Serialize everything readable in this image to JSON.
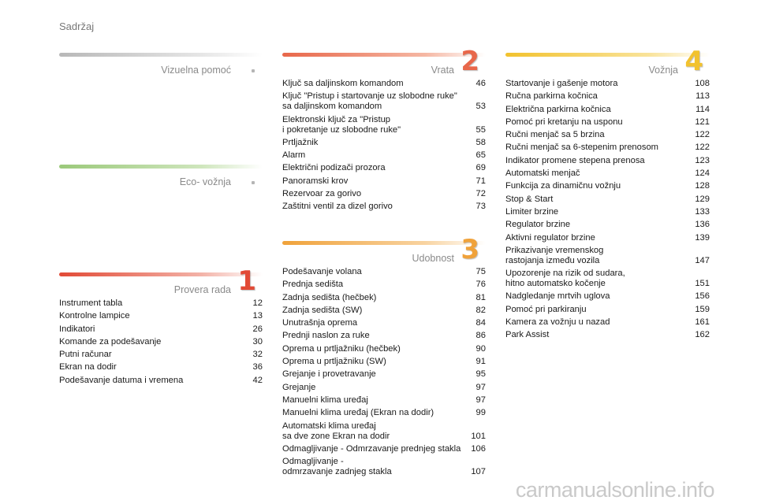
{
  "page": {
    "title": "Sadržaj"
  },
  "sections": {
    "vizuelna": {
      "title": "Vizuelna pomoć",
      "bar_color": "#b8b8b8",
      "items": []
    },
    "eco": {
      "title": "Eco- vožnja",
      "bar_color": "#9bc97a",
      "items": []
    },
    "provera": {
      "title": "Provera rada",
      "number": "1",
      "accent": "#e24a36",
      "items": [
        {
          "label": "Instrument tabla",
          "page": "12"
        },
        {
          "label": "Kontrolne lampice",
          "page": "13"
        },
        {
          "label": "Indikatori",
          "page": "26"
        },
        {
          "label": "Komande za podešavanje",
          "page": "30"
        },
        {
          "label": "Putni računar",
          "page": "32"
        },
        {
          "label": "Ekran na dodir",
          "page": "36"
        },
        {
          "label": "Podešavanje datuma i vremena",
          "page": "42"
        }
      ]
    },
    "vrata": {
      "title": "Vrata",
      "number": "2",
      "accent": "#e8674a",
      "items": [
        {
          "label": "Ključ sa daljinskom komandom",
          "page": "46"
        },
        {
          "label": "Ključ \"Pristup i startovanje uz slobodne ruke\"\n    sa daljinskom komandom",
          "page": "53"
        },
        {
          "label": "Elektronski ključ za \"Pristup\n    i pokretanje uz slobodne ruke\"",
          "page": "55"
        },
        {
          "label": "Prtljažnik",
          "page": "58"
        },
        {
          "label": "Alarm",
          "page": "65"
        },
        {
          "label": "Električni podizači prozora",
          "page": "69"
        },
        {
          "label": "Panoramski krov",
          "page": "71"
        },
        {
          "label": "Rezervoar za gorivo",
          "page": "72"
        },
        {
          "label": "Zaštitni ventil za dizel gorivo",
          "page": "73"
        }
      ]
    },
    "udobnost": {
      "title": "Udobnost",
      "number": "3",
      "accent": "#f0a23a",
      "items": [
        {
          "label": "Podešavanje volana",
          "page": "75"
        },
        {
          "label": "Prednja sedišta",
          "page": "76"
        },
        {
          "label": "Zadnja sedišta (hečbek)",
          "page": "81"
        },
        {
          "label": "Zadnja sedišta (SW)",
          "page": "82"
        },
        {
          "label": "Unutrašnja oprema",
          "page": "84"
        },
        {
          "label": "Prednji naslon za ruke",
          "page": "86"
        },
        {
          "label": "Oprema u prtljažniku (hečbek)",
          "page": "90"
        },
        {
          "label": "Oprema u prtljažniku (SW)",
          "page": "91"
        },
        {
          "label": "Grejanje i provetravanje",
          "page": "95"
        },
        {
          "label": "Grejanje",
          "page": "97"
        },
        {
          "label": "Manuelni klima uređaj",
          "page": "97"
        },
        {
          "label": "Manuelni klima uređaj (Ekran na dodir)",
          "page": "99"
        },
        {
          "label": "Automatski klima uređaj\n    sa dve zone Ekran na dodir",
          "page": "101"
        },
        {
          "label": "Odmagljivanje - Odmrzavanje prednjeg stakla",
          "page": "106"
        },
        {
          "label": "Odmagljivanje -\n    odmrzavanje zadnjeg stakla",
          "page": "107"
        }
      ]
    },
    "voznja": {
      "title": "Vožnja",
      "number": "4",
      "accent": "#f2c22e",
      "items": [
        {
          "label": "Startovanje i gašenje motora",
          "page": "108"
        },
        {
          "label": "Ručna parkirna kočnica",
          "page": "113"
        },
        {
          "label": "Električna parkirna kočnica",
          "page": "114"
        },
        {
          "label": "Pomoć pri kretanju na usponu",
          "page": "121"
        },
        {
          "label": "Ručni menjač sa 5 brzina",
          "page": "122"
        },
        {
          "label": "Ručni menjač sa 6-stepenim prenosom",
          "page": "122"
        },
        {
          "label": "Indikator promene stepena prenosa",
          "page": "123"
        },
        {
          "label": "Automatski menjač",
          "page": "124"
        },
        {
          "label": "Funkcija za dinamičnu vožnju",
          "page": "128"
        },
        {
          "label": "Stop & Start",
          "page": "129"
        },
        {
          "label": "Limiter brzine",
          "page": "133"
        },
        {
          "label": "Regulator brzine",
          "page": "136"
        },
        {
          "label": "Aktivni regulator brzine",
          "page": "139"
        },
        {
          "label": "Prikazivanje vremenskog\n    rastojanja između vozila",
          "page": "147"
        },
        {
          "label": "Upozorenje na rizik od sudara,\n    hitno automatsko kočenje",
          "page": "151"
        },
        {
          "label": "Nadgledanje mrtvih uglova",
          "page": "156"
        },
        {
          "label": "Pomoć pri parkiranju",
          "page": "159"
        },
        {
          "label": "Kamera za vožnju u nazad",
          "page": "161"
        },
        {
          "label": "Park Assist",
          "page": "162"
        }
      ]
    }
  },
  "watermark": "carmanualsonline.info"
}
